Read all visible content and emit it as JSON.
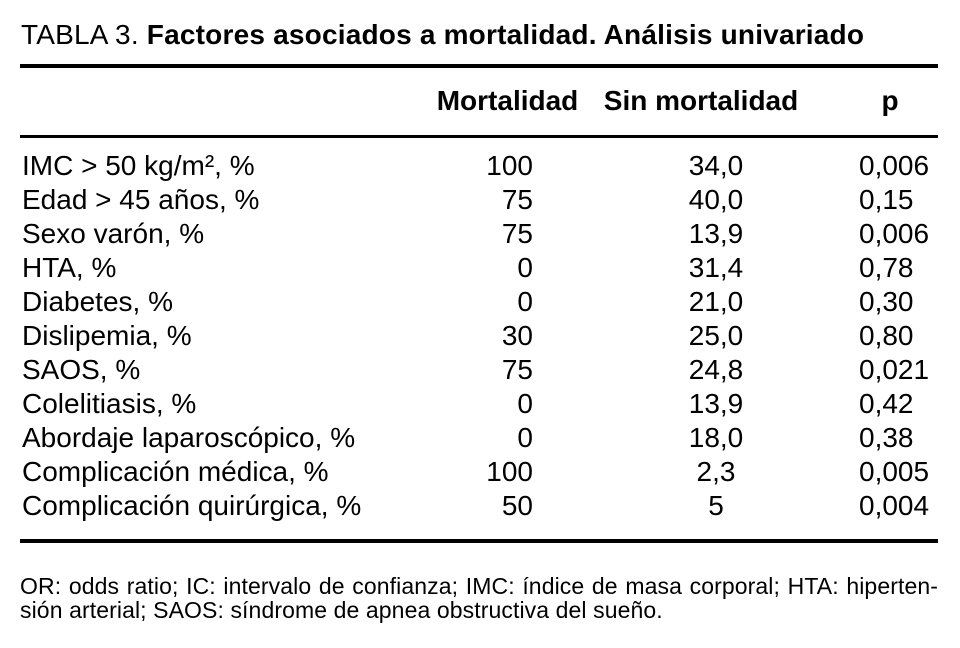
{
  "colors": {
    "text": "#000000",
    "background": "#ffffff",
    "rule": "#000000"
  },
  "title": {
    "label": "TABLA 3.",
    "text": "Factores asociados a mortalidad. Análisis univariado"
  },
  "header": {
    "factor": "",
    "mortalidad": "Mortalidad",
    "sin_mortalidad": "Sin mortalidad",
    "p": "p"
  },
  "rows": [
    {
      "factor": "IMC > 50 kg/m², %",
      "mortalidad": "100",
      "sin_mortalidad": "34,0",
      "p": "0,006"
    },
    {
      "factor": "Edad > 45 años, %",
      "mortalidad": "75",
      "sin_mortalidad": "40,0",
      "p": "0,15"
    },
    {
      "factor": "Sexo varón, %",
      "mortalidad": "75",
      "sin_mortalidad": "13,9",
      "p": "0,006"
    },
    {
      "factor": "HTA, %",
      "mortalidad": "0",
      "sin_mortalidad": "31,4",
      "p": "0,78"
    },
    {
      "factor": "Diabetes, %",
      "mortalidad": "0",
      "sin_mortalidad": "21,0",
      "p": "0,30"
    },
    {
      "factor": "Dislipemia, %",
      "mortalidad": "30",
      "sin_mortalidad": "25,0",
      "p": "0,80"
    },
    {
      "factor": "SAOS, %",
      "mortalidad": "75",
      "sin_mortalidad": "24,8",
      "p": "0,021"
    },
    {
      "factor": "Colelitiasis, %",
      "mortalidad": "0",
      "sin_mortalidad": "13,9",
      "p": "0,42"
    },
    {
      "factor": "Abordaje laparoscópico, %",
      "mortalidad": "0",
      "sin_mortalidad": "18,0",
      "p": "0,38"
    },
    {
      "factor": "Complicación médica, %",
      "mortalidad": "100",
      "sin_mortalidad": "2,3",
      "p": "0,005"
    },
    {
      "factor": "Complicación quirúrgica, %",
      "mortalidad": "50",
      "sin_mortalidad": "5",
      "p": "0,004"
    }
  ],
  "footnote": {
    "line1": "OR: odds ratio; IC: intervalo de confianza; IMC: índice de masa corporal; HTA: hiperten-",
    "line2": "sión arterial; SAOS: síndrome de apnea obstructiva del sueño."
  }
}
